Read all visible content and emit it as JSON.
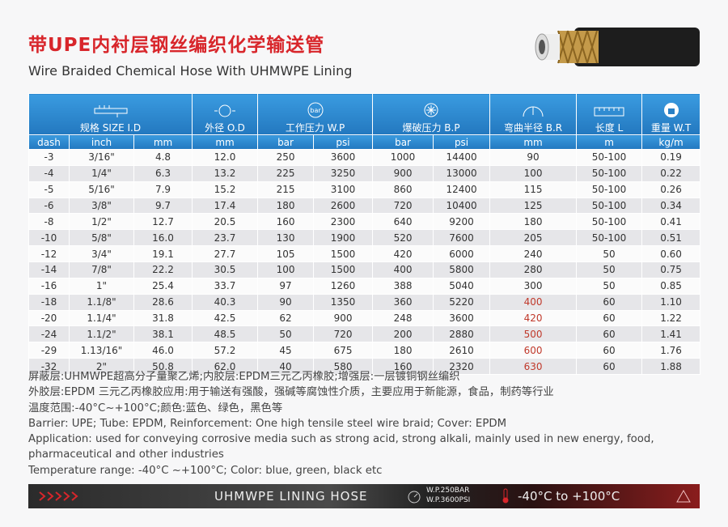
{
  "header": {
    "title": "带UPE内衬层钢丝编织化学输送管",
    "subtitle": "Wire Braided Chemical Hose With UHMWPE Lining"
  },
  "table": {
    "groups": [
      "规格 SIZE I.D",
      "外径 O.D",
      "工作压力 W.P",
      "爆破压力 B.P",
      "弯曲半径 B.R",
      "长度 L",
      "重量 W.T"
    ],
    "icon_label": "bar",
    "columns": [
      "dash",
      "inch",
      "mm",
      "mm",
      "bar",
      "psi",
      "bar",
      "psi",
      "mm",
      "m",
      "kg/m"
    ],
    "rows": [
      [
        "-3",
        "3/16\"",
        "4.8",
        "12.0",
        "250",
        "3600",
        "1000",
        "14400",
        "90",
        "50-100",
        "0.19"
      ],
      [
        "-4",
        "1/4\"",
        "6.3",
        "13.2",
        "225",
        "3250",
        "900",
        "13000",
        "100",
        "50-100",
        "0.22"
      ],
      [
        "-5",
        "5/16\"",
        "7.9",
        "15.2",
        "215",
        "3100",
        "860",
        "12400",
        "115",
        "50-100",
        "0.26"
      ],
      [
        "-6",
        "3/8\"",
        "9.7",
        "17.4",
        "180",
        "2600",
        "720",
        "10400",
        "125",
        "50-100",
        "0.34"
      ],
      [
        "-8",
        "1/2\"",
        "12.7",
        "20.5",
        "160",
        "2300",
        "640",
        "9200",
        "180",
        "50-100",
        "0.41"
      ],
      [
        "-10",
        "5/8\"",
        "16.0",
        "23.7",
        "130",
        "1900",
        "520",
        "7600",
        "205",
        "50-100",
        "0.51"
      ],
      [
        "-12",
        "3/4\"",
        "19.1",
        "27.7",
        "105",
        "1500",
        "420",
        "6000",
        "240",
        "50",
        "0.60"
      ],
      [
        "-14",
        "7/8\"",
        "22.2",
        "30.5",
        "100",
        "1500",
        "400",
        "5800",
        "280",
        "50",
        "0.75"
      ],
      [
        "-16",
        "1\"",
        "25.4",
        "33.7",
        "97",
        "1260",
        "388",
        "5040",
        "300",
        "50",
        "0.85"
      ],
      [
        "-18",
        "1.1/8\"",
        "28.6",
        "40.3",
        "90",
        "1350",
        "360",
        "5220",
        "400",
        "60",
        "1.10"
      ],
      [
        "-20",
        "1.1/4\"",
        "31.8",
        "42.5",
        "62",
        "900",
        "248",
        "3600",
        "420",
        "60",
        "1.22"
      ],
      [
        "-24",
        "1.1/2\"",
        "38.1",
        "48.5",
        "50",
        "720",
        "200",
        "2880",
        "500",
        "60",
        "1.41"
      ],
      [
        "-29",
        "1.13/16\"",
        "46.0",
        "57.2",
        "45",
        "675",
        "180",
        "2610",
        "600",
        "60",
        "1.76"
      ],
      [
        "-32",
        "2\"",
        "50.8",
        "62.0",
        "40",
        "580",
        "160",
        "2320",
        "630",
        "60",
        "1.88"
      ]
    ]
  },
  "notes": [
    "屏蔽层:UHMWPE超高分子量聚乙烯;内胶层:EPDM三元乙丙橡胶;增强层:一层镀铜钢丝编织",
    "外胶层:EPDM 三元乙丙橡胶应用:用于输送有强酸，强碱等腐蚀性介质，主要应用于新能源，食品，制药等行业",
    "温度范围:-40°C~+100°C;颜色:蓝色、绿色，黑色等",
    "Barrier: UPE; Tube: EPDM, Reinforcement: One high tensile steel wire braid; Cover: EPDM",
    "Application: used for conveying corrosive media such as strong acid, strong alkali, mainly used in new energy, food, pharmaceutical and other industries",
    "Temperature range: -40°C ~+100°C; Color: blue, green, black etc"
  ],
  "footer": {
    "name": "UHMWPE LINING HOSE",
    "wp_bar": "W.P.250BAR",
    "wp_psi": "W.P.3600PSI",
    "temperature": "-40°C to +100°C"
  }
}
